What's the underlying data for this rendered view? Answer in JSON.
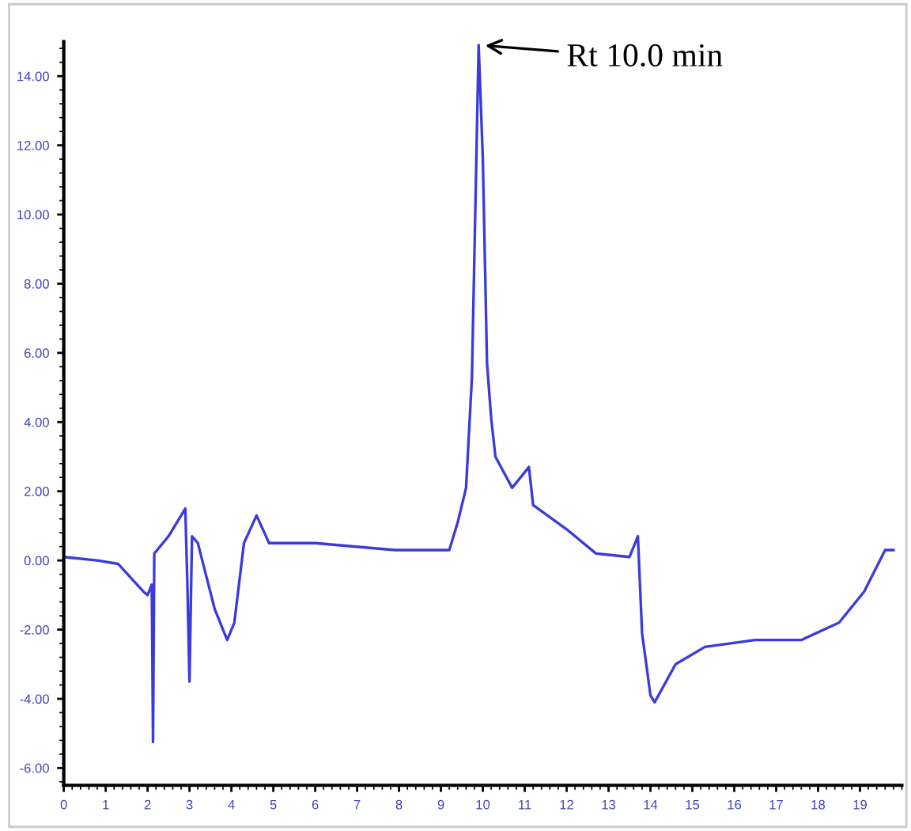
{
  "chart_data": {
    "type": "line",
    "x": [
      0,
      0.8,
      1.3,
      1.9,
      2.0,
      2.1,
      2.13,
      2.16,
      2.5,
      2.9,
      2.95,
      3.0,
      3.06,
      3.2,
      3.6,
      3.9,
      4.07,
      4.3,
      4.6,
      4.9,
      6.0,
      7.9,
      9.2,
      9.4,
      9.6,
      9.74,
      9.9,
      10.0,
      10.1,
      10.2,
      10.3,
      10.7,
      11.1,
      11.2,
      12.0,
      12.7,
      13.5,
      13.7,
      13.8,
      14.0,
      14.1,
      14.6,
      15.3,
      16.5,
      17.6,
      18.5,
      19.1,
      19.6,
      19.8
    ],
    "series": [
      {
        "color": "#3b3bdc",
        "values": [
          0.1,
          0,
          -0.1,
          -0.9,
          -1.0,
          -0.7,
          -5.25,
          0.2,
          0.7,
          1.5,
          -0.7,
          -3.5,
          0.7,
          0.5,
          -1.4,
          -2.3,
          -1.8,
          0.5,
          1.3,
          0.5,
          0.5,
          0.3,
          0.3,
          1.1,
          2.1,
          5.3,
          14.9,
          11.6,
          5.7,
          4.1,
          3.0,
          2.1,
          2.7,
          1.6,
          0.9,
          0.2,
          0.1,
          0.7,
          -2.1,
          -3.9,
          -4.1,
          -3.0,
          -2.5,
          -2.3,
          -2.3,
          -1.8,
          -0.9,
          0.3,
          0.3
        ]
      }
    ],
    "xlim": [
      0,
      20
    ],
    "xticks": [
      0,
      1,
      2,
      3,
      4,
      5,
      6,
      7,
      8,
      9,
      10,
      11,
      12,
      13,
      14,
      15,
      16,
      17,
      18,
      19
    ],
    "ylim": [
      -6.5,
      15
    ],
    "yticks": [
      {
        "value": -6,
        "label": "-6.00"
      },
      {
        "value": -4,
        "label": "-4.00"
      },
      {
        "value": -2,
        "label": "-2.00"
      },
      {
        "value": 0,
        "label": "0.00"
      },
      {
        "value": 2,
        "label": "2.00"
      },
      {
        "value": 4,
        "label": "4.00"
      },
      {
        "value": 6,
        "label": "6.00"
      },
      {
        "value": 8,
        "label": "8.00"
      },
      {
        "value": 10,
        "label": "10.00"
      },
      {
        "value": 12,
        "label": "12.00"
      },
      {
        "value": 14,
        "label": "14.00"
      }
    ],
    "annotations": [
      {
        "text": "Rt 10.0 min",
        "x": 9.9,
        "y": 14.9
      }
    ],
    "grid": false,
    "legend": false,
    "marker": "none",
    "line_style": "solid"
  }
}
